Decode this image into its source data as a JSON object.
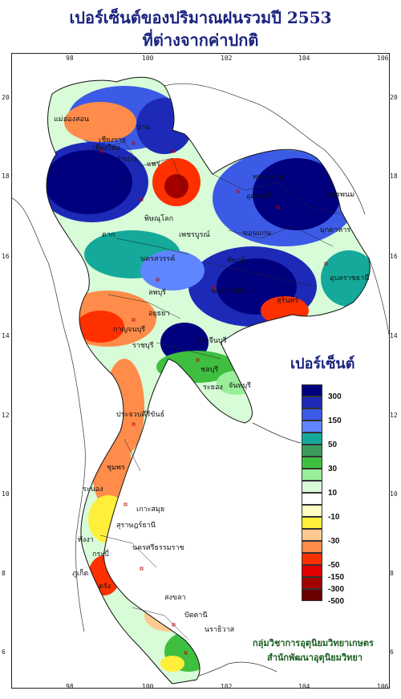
{
  "title": {
    "line1": "เปอร์เซ็นต์ของปริมาณฝนรวมปี  2553",
    "line2": "ที่ต่างจากค่าปกติ"
  },
  "axes": {
    "lon_ticks": [
      "98",
      "100",
      "102",
      "104",
      "106"
    ],
    "lat_ticks": [
      "20",
      "18",
      "16",
      "14",
      "12",
      "10",
      "8",
      "6"
    ]
  },
  "legend": {
    "title": "เปอร์เซ็นต์",
    "colors": [
      "#00007f",
      "#1d2ab8",
      "#3b5be6",
      "#5f86ff",
      "#14a99a",
      "#3b9c5e",
      "#3fbf3f",
      "#99ee99",
      "#d8fbd8",
      "#ffffff",
      "#ffffc2",
      "#ffef3a",
      "#ffc98f",
      "#ff8c4a",
      "#ff3000",
      "#e00000",
      "#a30000",
      "#6b0000"
    ],
    "labels": [
      "300",
      "",
      "150",
      "",
      "50",
      "",
      "30",
      "",
      "10",
      "",
      "-10",
      "",
      "-30",
      "",
      "-50",
      "-150",
      "-300",
      "-500"
    ]
  },
  "credit": {
    "line1": "กลุ่มวิชาการอุตุนิยมวิทยาเกษตร",
    "line2": "สำนักพัฒนาอุตุนิยมวิทยา"
  },
  "places": [
    {
      "name": "เชียงราย"
    },
    {
      "name": "เชียงใหม่"
    },
    {
      "name": "น่าน"
    },
    {
      "name": "ลำปาง"
    },
    {
      "name": "แม่ฮ่องสอน"
    },
    {
      "name": "แพร่"
    },
    {
      "name": "หนองคาย"
    },
    {
      "name": "อุดรธานี"
    },
    {
      "name": "นครพนม"
    },
    {
      "name": "มุกดาหาร"
    },
    {
      "name": "พิษณุโลก"
    },
    {
      "name": "เพชรบูรณ์"
    },
    {
      "name": "ขอนแก่น"
    },
    {
      "name": "ตาก"
    },
    {
      "name": "นครสวรรค์"
    },
    {
      "name": "ชัยภูมิ"
    },
    {
      "name": "อุบลราชธานี"
    },
    {
      "name": "นครราชสีมา"
    },
    {
      "name": "สุรินทร์"
    },
    {
      "name": "ลพบุรี"
    },
    {
      "name": "กาญจนบุรี"
    },
    {
      "name": "ราชบุรี"
    },
    {
      "name": "ปราจีนบุรี"
    },
    {
      "name": "ชลบุรี"
    },
    {
      "name": "ระยอง"
    },
    {
      "name": "จันทบุรี"
    },
    {
      "name": "ประจวบคีรีขันธ์"
    },
    {
      "name": "ชุมพร"
    },
    {
      "name": "ระนอง"
    },
    {
      "name": "เกาะสมุย"
    },
    {
      "name": "สุราษฎร์ธานี"
    },
    {
      "name": "ภูเก็ต"
    },
    {
      "name": "นครศรีธรรมราช"
    },
    {
      "name": "สงขลา"
    },
    {
      "name": "ปัตตานี"
    },
    {
      "name": "นราธิวาส"
    },
    {
      "name": "กระบี่"
    },
    {
      "name": "ตรัง"
    },
    {
      "name": "พังงา"
    },
    {
      "name": "อยุธยา"
    }
  ]
}
